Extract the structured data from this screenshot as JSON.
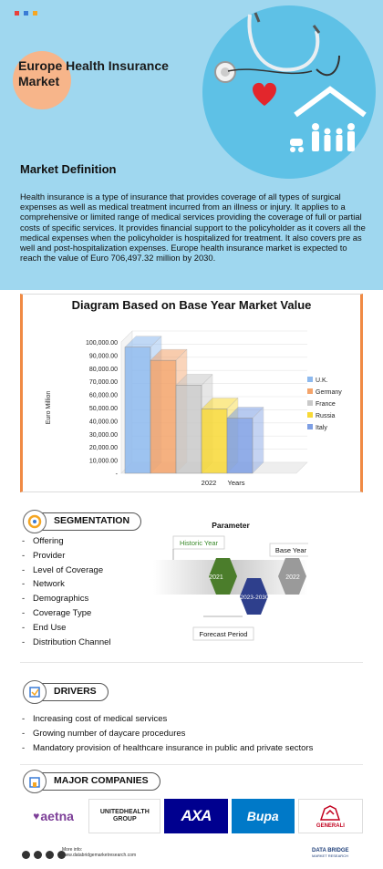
{
  "header": {
    "title": "Europe Health Insurance Market",
    "dot_colors": [
      "#e8413c",
      "#3a7bd5",
      "#f5a623"
    ]
  },
  "definition": {
    "heading": "Market Definition",
    "text": "Health insurance is a type of insurance that provides coverage of all types of surgical expenses as well as medical treatment incurred from an illness or injury. It applies to a comprehensive or limited range of medical services providing the coverage of full or partial costs of specific services. It provides financial support to the policyholder as it covers all the medical expenses when the policyholder is hospitalized for treatment. It also covers pre as well and post-hospitalization expenses.  Europe health insurance market is expected to reach the value of Euro 706,497.32 million by 2030."
  },
  "chart_data": {
    "type": "bar",
    "title": "Diagram Based on Base Year Market Value",
    "categories": [
      "2022"
    ],
    "xlabel": "Years",
    "ylabel": "Euro Million",
    "ylim": [
      0,
      100000
    ],
    "yticks": [
      "100,000.00",
      "90,000.00",
      "80,000.00",
      "70,000.00",
      "60,000.00",
      "50,000.00",
      "40,000.00",
      "30,000.00",
      "20,000.00",
      "10,000.00",
      "-"
    ],
    "series": [
      {
        "name": "U.K.",
        "values": [
          96000
        ],
        "color": "#8db9ee"
      },
      {
        "name": "Germany",
        "values": [
          86000
        ],
        "color": "#f4a46b"
      },
      {
        "name": "France",
        "values": [
          67000
        ],
        "color": "#c9c9c9"
      },
      {
        "name": "Russia",
        "values": [
          49000
        ],
        "color": "#f8d936"
      },
      {
        "name": "Italy",
        "values": [
          42000
        ],
        "color": "#7e9fe4"
      }
    ],
    "legend_position": "right",
    "style": "3d"
  },
  "segmentation": {
    "label": "SEGMENTATION",
    "items": [
      "Offering",
      "Provider",
      "Level of Coverage",
      "Network",
      "Demographics",
      "Coverage Type",
      "End Use",
      "Distribution Channel"
    ]
  },
  "parameter": {
    "title": "Parameter",
    "historic_label": "Historic Year",
    "base_label": "Base Year",
    "forecast_label": "Forecast Period",
    "historic_year": "2021",
    "forecast_years": "2023-2030",
    "base_year": "2022"
  },
  "drivers": {
    "label": "DRIVERS",
    "items": [
      "Increasing cost of medical services",
      "Growing number of daycare procedures",
      "Mandatory provision of healthcare insurance in public and private sectors"
    ]
  },
  "companies": {
    "label": "MAJOR COMPANIES",
    "logos": [
      {
        "name": "aetna",
        "icon": "heart-icon"
      },
      {
        "name": "UNITEDHEALTH GROUP"
      },
      {
        "name": "AXA"
      },
      {
        "name": "Bupa"
      },
      {
        "name": "GENERALI",
        "icon": "lion-icon"
      }
    ]
  },
  "footer": {
    "more_info": "More info:",
    "url": "www.databridgemarketresearch.com",
    "brand": "DATA BRIDGE",
    "brand_sub": "MARKET RESEARCH"
  }
}
